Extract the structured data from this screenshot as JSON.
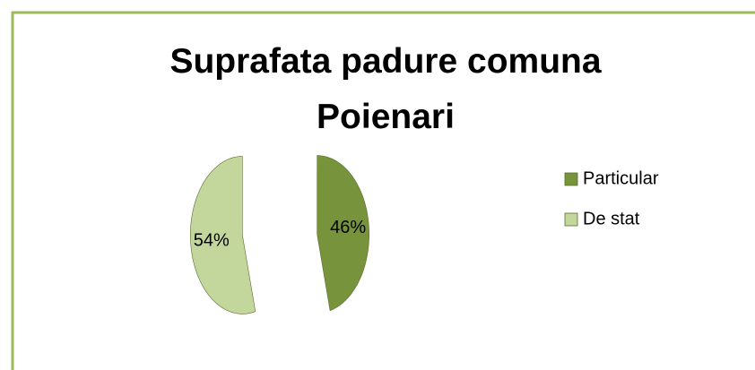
{
  "chart_data": {
    "type": "pie",
    "title": "Suprafata padure comuna Poienari",
    "categories": [
      "Particular",
      "De stat"
    ],
    "values": [
      46,
      54
    ],
    "value_labels": [
      "46%",
      "54%"
    ],
    "colors": [
      "#77933c",
      "#c3d69b"
    ],
    "legend": "right"
  }
}
